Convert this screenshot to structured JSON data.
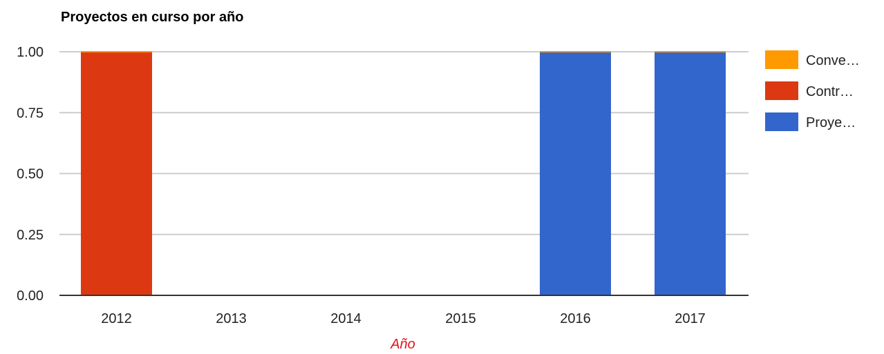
{
  "chart_data": {
    "type": "bar",
    "stacked": true,
    "title": "Proyectos en curso por año",
    "xlabel": "Año",
    "ylabel": "",
    "categories": [
      "2012",
      "2013",
      "2014",
      "2015",
      "2016",
      "2017"
    ],
    "ylim": [
      0,
      1
    ],
    "yticks": [
      "0.00",
      "0.25",
      "0.50",
      "0.75",
      "1.00"
    ],
    "grid": true,
    "legend_position": "right",
    "series": [
      {
        "name": "Proye…",
        "color": "#3366cc",
        "values": [
          0,
          0,
          0,
          0,
          1,
          1
        ]
      },
      {
        "name": "Contr…",
        "color": "#dc3912",
        "values": [
          1,
          0,
          0,
          0,
          0,
          0
        ]
      },
      {
        "name": "Conve…",
        "color": "#ff9900",
        "values": [
          0,
          0,
          0,
          0,
          0,
          0
        ]
      }
    ],
    "xlabel_color": "#e8101a"
  }
}
